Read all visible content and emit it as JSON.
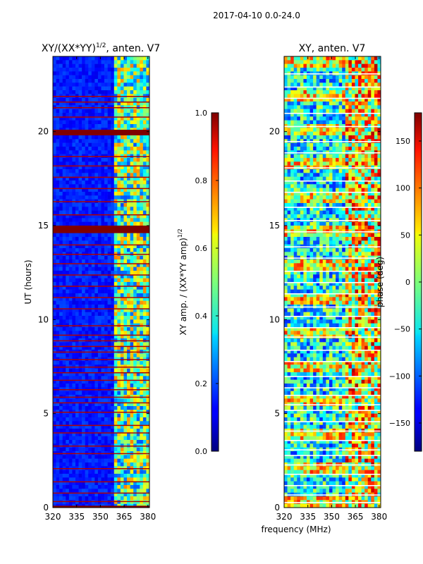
{
  "figure_title": "2017-04-10 0.0-24.0",
  "chart_data": [
    {
      "type": "heatmap",
      "title_main": "XY/(XX*YY)",
      "title_exp": "1/2",
      "title_rest": ", anten. V7",
      "xlabel": "",
      "ylabel": "UT (hours)",
      "xlim": [
        320,
        381
      ],
      "ylim": [
        0,
        24
      ],
      "xticks": [
        320,
        335,
        350,
        365,
        380
      ],
      "yticks": [
        0,
        5,
        10,
        15,
        20
      ],
      "colormap": "jet",
      "colorbar": {
        "label_main": "XY amp. / (XX*YY amp)",
        "label_exp": "1/2",
        "range": [
          0.0,
          1.0
        ],
        "ticks": [
          "0.0",
          "0.2",
          "0.4",
          "0.6",
          "0.8",
          "1.0"
        ],
        "tick_values": [
          0.0,
          0.2,
          0.4,
          0.6,
          0.8,
          1.0
        ]
      },
      "features": {
        "high_band_start_mhz": 358,
        "saturated_hours": [
          [
            14.6,
            15.0
          ],
          [
            19.8,
            20.1
          ],
          [
            0.0,
            0.1
          ]
        ],
        "flag_hours": [
          0.35,
          0.8,
          1.4,
          2.1,
          2.9,
          3.3,
          4.0,
          4.4,
          5.1,
          5.6,
          5.9,
          6.3,
          6.8,
          7.2,
          7.5,
          7.9,
          8.3,
          8.6,
          8.9,
          9.2,
          9.7,
          10.6,
          11.2,
          11.8,
          12.4,
          13.0,
          13.5,
          14.0,
          15.6,
          16.3,
          17.0,
          17.6,
          18.2,
          18.7,
          20.8,
          21.3,
          21.6,
          21.9
        ]
      }
    },
    {
      "type": "heatmap",
      "title": "XY, anten. V7",
      "xlabel": "frequency (MHz)",
      "ylabel": "",
      "xlim": [
        320,
        381
      ],
      "ylim": [
        0,
        24
      ],
      "xticks": [
        320,
        335,
        350,
        365,
        380
      ],
      "yticks": [
        0,
        5,
        10,
        15,
        20
      ],
      "colormap": "jet",
      "colorbar": {
        "label": "phase (deg)",
        "range": [
          -180,
          180
        ],
        "ticks": [
          "150",
          "100",
          "50",
          "0",
          "−50",
          "−100",
          "−150"
        ],
        "tick_values": [
          150,
          100,
          50,
          0,
          -50,
          -100,
          -150
        ]
      },
      "features": {
        "high_band_start_mhz": 358,
        "white_gap_hours": [
          0.3,
          0.7,
          1.2,
          1.8,
          2.3,
          2.8,
          3.1,
          3.6,
          4.1,
          4.6,
          5.2,
          5.5,
          6.0,
          6.4,
          7.0,
          7.8,
          8.4,
          9.1,
          9.6,
          10.2,
          10.7,
          11.4,
          12.0,
          12.6,
          13.3,
          13.9,
          14.7,
          15.3,
          16.0,
          16.8,
          17.4,
          18.1,
          18.9,
          19.5,
          20.3,
          21.0,
          21.8,
          22.4,
          23.1
        ]
      }
    }
  ]
}
